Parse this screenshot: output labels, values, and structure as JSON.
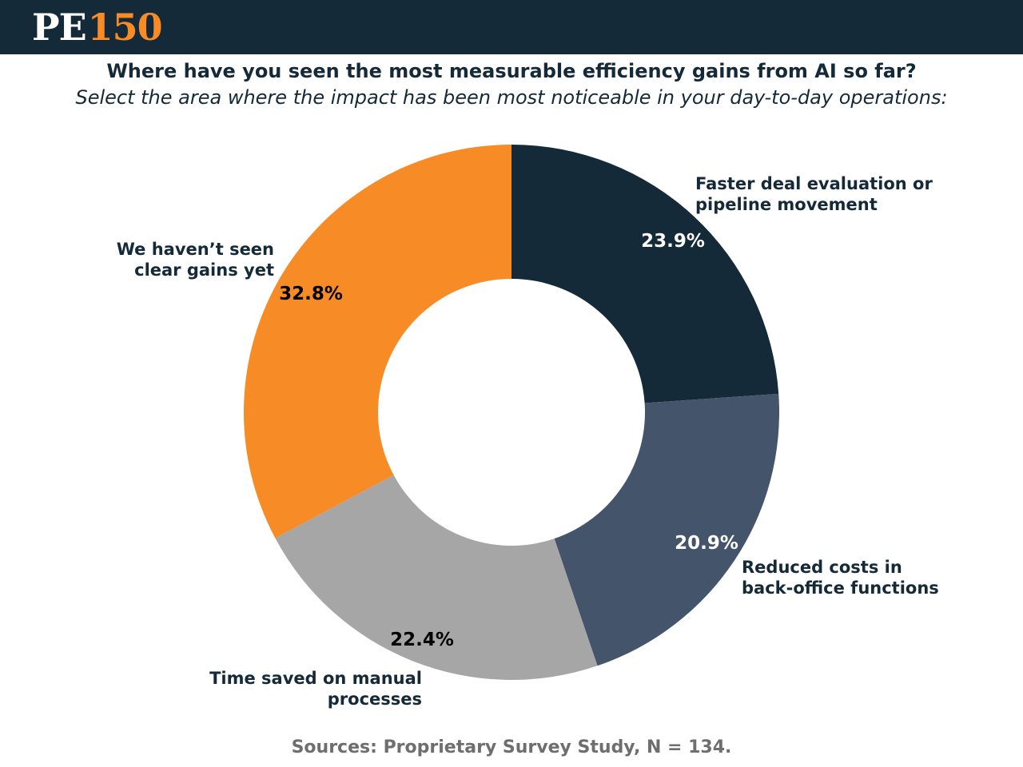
{
  "brand": {
    "pe": "PE",
    "num": "150"
  },
  "header": {
    "title": "Where have you seen the most measurable efficiency gains from AI so far?",
    "subtitle": "Select the area where the impact has been most noticeable in your day-to-day operations:"
  },
  "source": "Sources: Proprietary Survey Study, N = 134.",
  "colors": {
    "navy": "#142a38",
    "slate": "#44546a",
    "gray": "#a6a6a6",
    "orange": "#f78b26"
  },
  "chart_data": {
    "type": "pie",
    "donut": true,
    "slices": [
      {
        "label": [
          "Faster deal evaluation or",
          "pipeline movement"
        ],
        "value": 23.9,
        "value_label": "23.9%",
        "color": "#142a38",
        "value_text_color": "#ffffff"
      },
      {
        "label": [
          "Reduced costs in",
          "back-office functions"
        ],
        "value": 20.9,
        "value_label": "20.9%",
        "color": "#44546a",
        "value_text_color": "#ffffff"
      },
      {
        "label": [
          "Time saved on manual",
          "processes"
        ],
        "value": 22.4,
        "value_label": "22.4%",
        "color": "#a6a6a6",
        "value_text_color": "#000000"
      },
      {
        "label": [
          "We haven’t seen",
          "clear gains yet"
        ],
        "value": 32.8,
        "value_label": "32.8%",
        "color": "#f78b26",
        "value_text_color": "#000000"
      }
    ]
  }
}
